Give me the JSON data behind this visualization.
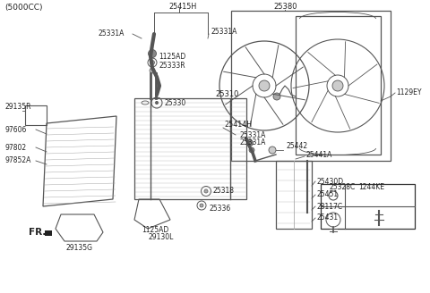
{
  "title": "(5000CC)",
  "bg_color": "#ffffff",
  "line_color": "#555555",
  "text_color": "#222222",
  "parts": {
    "top_label": "25415H",
    "fan_assembly_label": "25380",
    "fan_bolt_label": "1129EY",
    "hose_upper_left": "25331A",
    "hose_upper_right": "25331A",
    "clamp1": "1125AD",
    "clamp2": "25333R",
    "radiator_label": "25310",
    "cap_label": "25330",
    "lower_hose_label": "25414H",
    "lower_clamp1": "25331A",
    "lower_clamp2": "25331A",
    "bracket_label": "25328C",
    "bolt_label": "1244KE",
    "overflow_label": "25430D",
    "drain_label": "25441A",
    "plug1": "25442",
    "drain2": "25451",
    "bracket2": "28117C",
    "drain3": "25431",
    "bolt_label2": "25318",
    "bracket3": "29130L",
    "bracket4": "25336",
    "fr_label": "FR.",
    "left_bracket_top": "29135R",
    "left_bracket_bot": "29135G",
    "ac_label1": "97606",
    "ac_label2": "97802",
    "ac_label3": "97852A",
    "bottom_clamp": "1125AD"
  }
}
